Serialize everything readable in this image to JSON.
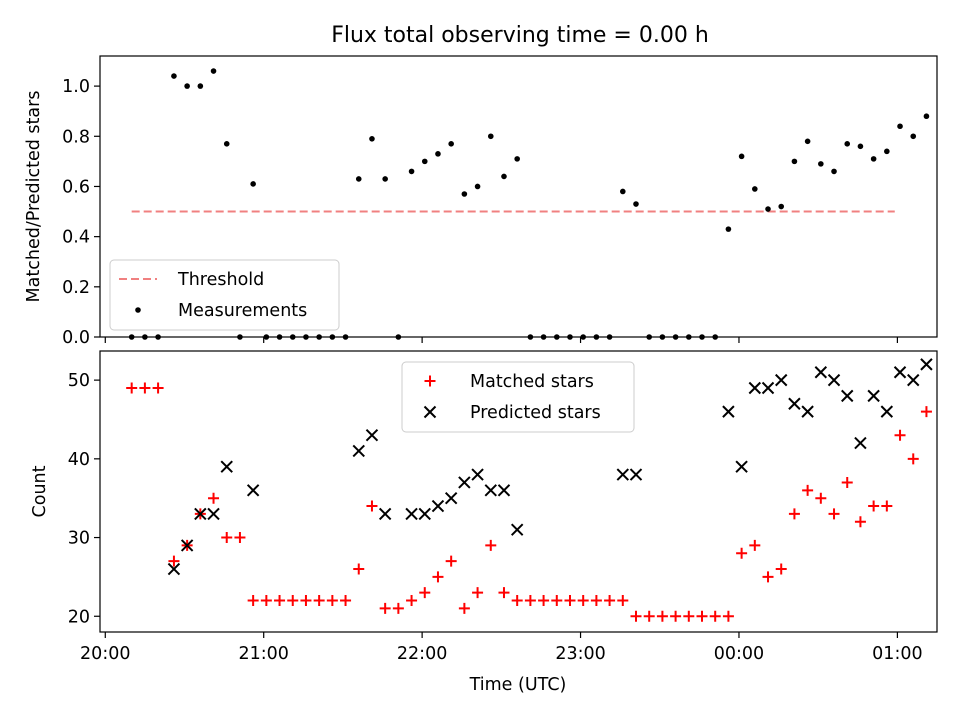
{
  "chart_data": [
    {
      "type": "scatter",
      "title": "Flux total observing time = 0.00 h",
      "xlabel": "",
      "ylabel": "Matched/Predicted stars",
      "ylim": [
        0.0,
        1.12
      ],
      "xlim": [
        "19:58",
        "01:15"
      ],
      "yticks": [
        0.0,
        0.2,
        0.4,
        0.6,
        0.8,
        1.0
      ],
      "ytick_labels": [
        "0.0",
        "0.2",
        "0.4",
        "0.6",
        "0.8",
        "1.0"
      ],
      "grid": false,
      "legend": {
        "placement": "lower-left",
        "entries": [
          {
            "label": "Threshold",
            "marker": "dashed-line",
            "color": "#f08080"
          },
          {
            "label": "Measurements",
            "marker": "dot",
            "color": "#000000"
          }
        ]
      },
      "series": [
        {
          "name": "Threshold",
          "kind": "line",
          "style": "dashed",
          "color": "#f08080",
          "x": [
            "20:10",
            "00:59"
          ],
          "y": [
            0.5,
            0.5
          ]
        },
        {
          "name": "Measurements",
          "kind": "points",
          "color": "#000000",
          "points": [
            [
              "20:10",
              0.0
            ],
            [
              "20:15",
              0.0
            ],
            [
              "20:20",
              0.0
            ],
            [
              "20:26",
              1.04
            ],
            [
              "20:31",
              1.0
            ],
            [
              "20:36",
              1.0
            ],
            [
              "20:41",
              1.06
            ],
            [
              "20:46",
              0.77
            ],
            [
              "20:51",
              0.0
            ],
            [
              "20:56",
              0.61
            ],
            [
              "21:01",
              0.0
            ],
            [
              "21:06",
              0.0
            ],
            [
              "21:11",
              0.0
            ],
            [
              "21:16",
              0.0
            ],
            [
              "21:21",
              0.0
            ],
            [
              "21:26",
              0.0
            ],
            [
              "21:31",
              0.0
            ],
            [
              "21:36",
              0.63
            ],
            [
              "21:41",
              0.79
            ],
            [
              "21:46",
              0.63
            ],
            [
              "21:51",
              0.0
            ],
            [
              "21:56",
              0.66
            ],
            [
              "22:01",
              0.7
            ],
            [
              "22:06",
              0.73
            ],
            [
              "22:11",
              0.77
            ],
            [
              "22:16",
              0.57
            ],
            [
              "22:21",
              0.6
            ],
            [
              "22:26",
              0.8
            ],
            [
              "22:31",
              0.64
            ],
            [
              "22:36",
              0.71
            ],
            [
              "22:41",
              0.0
            ],
            [
              "22:46",
              0.0
            ],
            [
              "22:51",
              0.0
            ],
            [
              "22:56",
              0.0
            ],
            [
              "23:01",
              0.0
            ],
            [
              "23:06",
              0.0
            ],
            [
              "23:11",
              0.0
            ],
            [
              "23:16",
              0.58
            ],
            [
              "23:21",
              0.53
            ],
            [
              "23:26",
              0.0
            ],
            [
              "23:31",
              0.0
            ],
            [
              "23:36",
              0.0
            ],
            [
              "23:41",
              0.0
            ],
            [
              "23:46",
              0.0
            ],
            [
              "23:51",
              0.0
            ],
            [
              "23:56",
              0.43
            ],
            [
              "00:01",
              0.72
            ],
            [
              "00:06",
              0.59
            ],
            [
              "00:11",
              0.51
            ],
            [
              "00:16",
              0.52
            ],
            [
              "00:21",
              0.7
            ],
            [
              "00:26",
              0.78
            ],
            [
              "00:31",
              0.69
            ],
            [
              "00:36",
              0.66
            ],
            [
              "00:41",
              0.77
            ],
            [
              "00:46",
              0.76
            ],
            [
              "00:51",
              0.71
            ],
            [
              "00:56",
              0.74
            ],
            [
              "01:01",
              0.84
            ],
            [
              "01:06",
              0.8
            ],
            [
              "01:11",
              0.88
            ]
          ]
        }
      ]
    },
    {
      "type": "scatter",
      "title": "",
      "xlabel": "Time (UTC)",
      "ylabel": "Count",
      "ylim": [
        18,
        53.7
      ],
      "xlim": [
        "19:58",
        "01:15"
      ],
      "yticks": [
        20,
        30,
        40,
        50
      ],
      "ytick_labels": [
        "20",
        "30",
        "40",
        "50"
      ],
      "xticks": [
        "20:00",
        "21:00",
        "22:00",
        "23:00",
        "00:00",
        "01:00"
      ],
      "xtick_labels": [
        "20:00",
        "21:00",
        "22:00",
        "23:00",
        "00:00",
        "01:00"
      ],
      "grid": false,
      "legend": {
        "placement": "upper-center",
        "entries": [
          {
            "label": "Matched stars",
            "marker": "plus",
            "color": "#ff0000"
          },
          {
            "label": "Predicted stars",
            "marker": "x",
            "color": "#000000"
          }
        ]
      },
      "series": [
        {
          "name": "Matched stars",
          "marker": "plus",
          "color": "#ff0000",
          "points": [
            [
              "20:10",
              49
            ],
            [
              "20:15",
              49
            ],
            [
              "20:20",
              49
            ],
            [
              "20:26",
              27
            ],
            [
              "20:31",
              29
            ],
            [
              "20:36",
              33
            ],
            [
              "20:41",
              35
            ],
            [
              "20:46",
              30
            ],
            [
              "20:51",
              30
            ],
            [
              "20:56",
              22
            ],
            [
              "21:01",
              22
            ],
            [
              "21:06",
              22
            ],
            [
              "21:11",
              22
            ],
            [
              "21:16",
              22
            ],
            [
              "21:21",
              22
            ],
            [
              "21:26",
              22
            ],
            [
              "21:31",
              22
            ],
            [
              "21:36",
              26
            ],
            [
              "21:41",
              34
            ],
            [
              "21:46",
              21
            ],
            [
              "21:51",
              21
            ],
            [
              "21:56",
              22
            ],
            [
              "22:01",
              23
            ],
            [
              "22:06",
              25
            ],
            [
              "22:11",
              27
            ],
            [
              "22:16",
              21
            ],
            [
              "22:21",
              23
            ],
            [
              "22:26",
              29
            ],
            [
              "22:31",
              23
            ],
            [
              "22:36",
              22
            ],
            [
              "22:41",
              22
            ],
            [
              "22:46",
              22
            ],
            [
              "22:51",
              22
            ],
            [
              "22:56",
              22
            ],
            [
              "23:01",
              22
            ],
            [
              "23:06",
              22
            ],
            [
              "23:11",
              22
            ],
            [
              "23:16",
              22
            ],
            [
              "23:21",
              20
            ],
            [
              "23:26",
              20
            ],
            [
              "23:31",
              20
            ],
            [
              "23:36",
              20
            ],
            [
              "23:41",
              20
            ],
            [
              "23:46",
              20
            ],
            [
              "23:51",
              20
            ],
            [
              "23:56",
              20
            ],
            [
              "00:01",
              28
            ],
            [
              "00:06",
              29
            ],
            [
              "00:11",
              25
            ],
            [
              "00:16",
              26
            ],
            [
              "00:21",
              33
            ],
            [
              "00:26",
              36
            ],
            [
              "00:31",
              35
            ],
            [
              "00:36",
              33
            ],
            [
              "00:41",
              37
            ],
            [
              "00:46",
              32
            ],
            [
              "00:51",
              34
            ],
            [
              "00:56",
              34
            ],
            [
              "01:01",
              43
            ],
            [
              "01:06",
              40
            ],
            [
              "01:11",
              46
            ]
          ]
        },
        {
          "name": "Predicted stars",
          "marker": "x",
          "color": "#000000",
          "points": [
            [
              "20:26",
              26
            ],
            [
              "20:31",
              29
            ],
            [
              "20:36",
              33
            ],
            [
              "20:41",
              33
            ],
            [
              "20:46",
              39
            ],
            [
              "20:56",
              36
            ],
            [
              "21:36",
              41
            ],
            [
              "21:41",
              43
            ],
            [
              "21:46",
              33
            ],
            [
              "21:56",
              33
            ],
            [
              "22:01",
              33
            ],
            [
              "22:06",
              34
            ],
            [
              "22:11",
              35
            ],
            [
              "22:16",
              37
            ],
            [
              "22:21",
              38
            ],
            [
              "22:26",
              36
            ],
            [
              "22:31",
              36
            ],
            [
              "22:36",
              31
            ],
            [
              "23:16",
              38
            ],
            [
              "23:21",
              38
            ],
            [
              "23:56",
              46
            ],
            [
              "00:01",
              39
            ],
            [
              "00:06",
              49
            ],
            [
              "00:11",
              49
            ],
            [
              "00:16",
              50
            ],
            [
              "00:21",
              47
            ],
            [
              "00:26",
              46
            ],
            [
              "00:31",
              51
            ],
            [
              "00:36",
              50
            ],
            [
              "00:41",
              48
            ],
            [
              "00:46",
              42
            ],
            [
              "00:51",
              48
            ],
            [
              "00:56",
              46
            ],
            [
              "01:01",
              51
            ],
            [
              "01:06",
              50
            ],
            [
              "01:11",
              52
            ]
          ]
        }
      ]
    }
  ]
}
